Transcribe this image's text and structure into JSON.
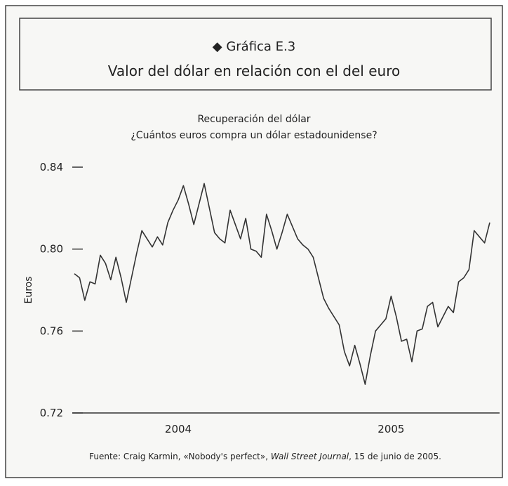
{
  "chart_data": {
    "type": "line",
    "title": "◆ Gráfica E.3",
    "subtitle": "Valor del dólar en relación con el del euro",
    "chart_title": [
      "Recuperación del dólar",
      "¿Cuántos euros compra un dólar estadounidense?"
    ],
    "y_label": "Euros",
    "source": [
      "Fuente: Craig Karmin, «Nobody's perfect», ",
      "Wall Street Journal",
      ", 15 de junio de 2005."
    ],
    "color": "#333333",
    "ylim": [
      0.72,
      0.84
    ],
    "yticks": [
      0.72,
      0.76,
      {
        "value": 0.8,
        "label": "0.80"
      },
      0.84
    ],
    "categories": [
      null,
      null,
      null,
      null,
      null,
      null,
      null,
      null,
      null,
      null,
      null,
      null,
      null,
      null,
      null,
      null,
      null,
      null,
      null,
      null,
      "2004",
      null,
      null,
      null,
      null,
      null,
      null,
      null,
      null,
      null,
      null,
      null,
      null,
      null,
      null,
      null,
      null,
      null,
      null,
      null,
      null,
      null,
      null,
      null,
      null,
      null,
      null,
      null,
      null,
      null,
      null,
      null,
      null,
      null,
      null,
      null,
      null,
      null,
      null,
      null,
      null,
      "2005",
      null,
      null,
      null,
      null,
      null,
      null,
      null,
      null,
      null,
      null,
      null,
      null,
      null,
      null,
      null,
      null,
      null,
      null,
      null
    ],
    "values": [
      0.788,
      0.786,
      0.775,
      0.784,
      0.783,
      0.797,
      0.793,
      0.785,
      0.796,
      0.786,
      0.774,
      0.786,
      0.798,
      0.809,
      0.805,
      0.801,
      0.806,
      0.802,
      0.813,
      0.819,
      0.824,
      0.831,
      0.822,
      0.812,
      0.822,
      0.832,
      0.82,
      0.808,
      0.805,
      0.803,
      0.819,
      0.812,
      0.805,
      0.815,
      0.8,
      0.799,
      0.796,
      0.817,
      0.809,
      0.8,
      0.808,
      0.817,
      0.811,
      0.805,
      0.802,
      0.8,
      0.796,
      0.786,
      0.776,
      0.771,
      0.767,
      0.763,
      0.75,
      0.743,
      0.753,
      0.744,
      0.734,
      0.748,
      0.76,
      0.763,
      0.766,
      0.777,
      0.767,
      0.755,
      0.756,
      0.745,
      0.76,
      0.761,
      0.772,
      0.774,
      0.762,
      0.767,
      0.772,
      0.769,
      0.784,
      0.786,
      0.79,
      0.809,
      0.806,
      0.803,
      0.813
    ]
  }
}
